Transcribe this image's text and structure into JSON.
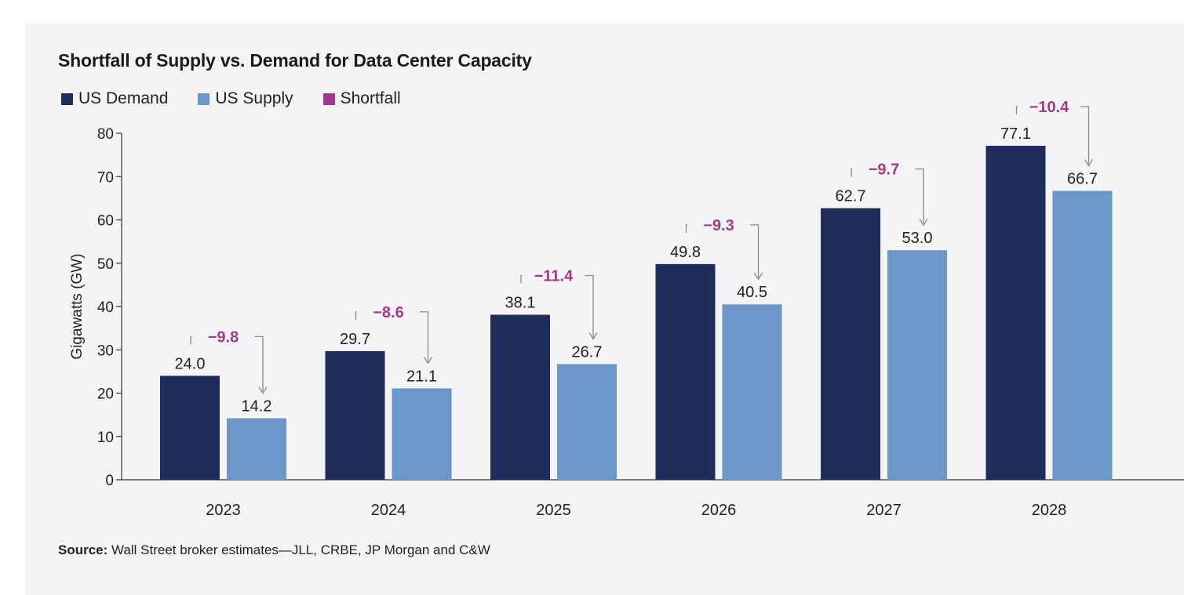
{
  "chart_data": {
    "type": "bar",
    "title": "Shortfall of Supply vs. Demand for Data Center Capacity",
    "ylabel": "Gigawatts (GW)",
    "xlabel": "",
    "ylim": [
      0,
      80
    ],
    "yticks": [
      0,
      10,
      20,
      30,
      40,
      50,
      60,
      70,
      80
    ],
    "grid": false,
    "legend_position": "top-left",
    "categories": [
      "2023",
      "2024",
      "2025",
      "2026",
      "2027",
      "2028"
    ],
    "series": [
      {
        "name": "US Demand",
        "color": "#1f2d5c",
        "values": [
          24.0,
          29.7,
          38.1,
          49.8,
          62.7,
          77.1
        ],
        "labels": [
          "24.0",
          "29.7",
          "38.1",
          "49.8",
          "62.7",
          "77.1"
        ]
      },
      {
        "name": "US Supply",
        "color": "#6b98c9",
        "values": [
          14.2,
          21.1,
          26.7,
          40.5,
          53.0,
          66.7
        ],
        "labels": [
          "14.2",
          "21.1",
          "26.7",
          "40.5",
          "53.0",
          "66.7"
        ]
      }
    ],
    "shortfall": {
      "name": "Shortfall",
      "color": "#a23a8c",
      "values": [
        -9.8,
        -8.6,
        -11.4,
        -9.3,
        -9.7,
        -10.4
      ],
      "labels": [
        "−9.8",
        "−8.6",
        "−11.4",
        "−9.3",
        "−9.7",
        "−10.4"
      ]
    }
  },
  "source": {
    "label": "Source:",
    "text": " Wall Street broker estimates—JLL, CRBE, JP Morgan and C&W"
  }
}
